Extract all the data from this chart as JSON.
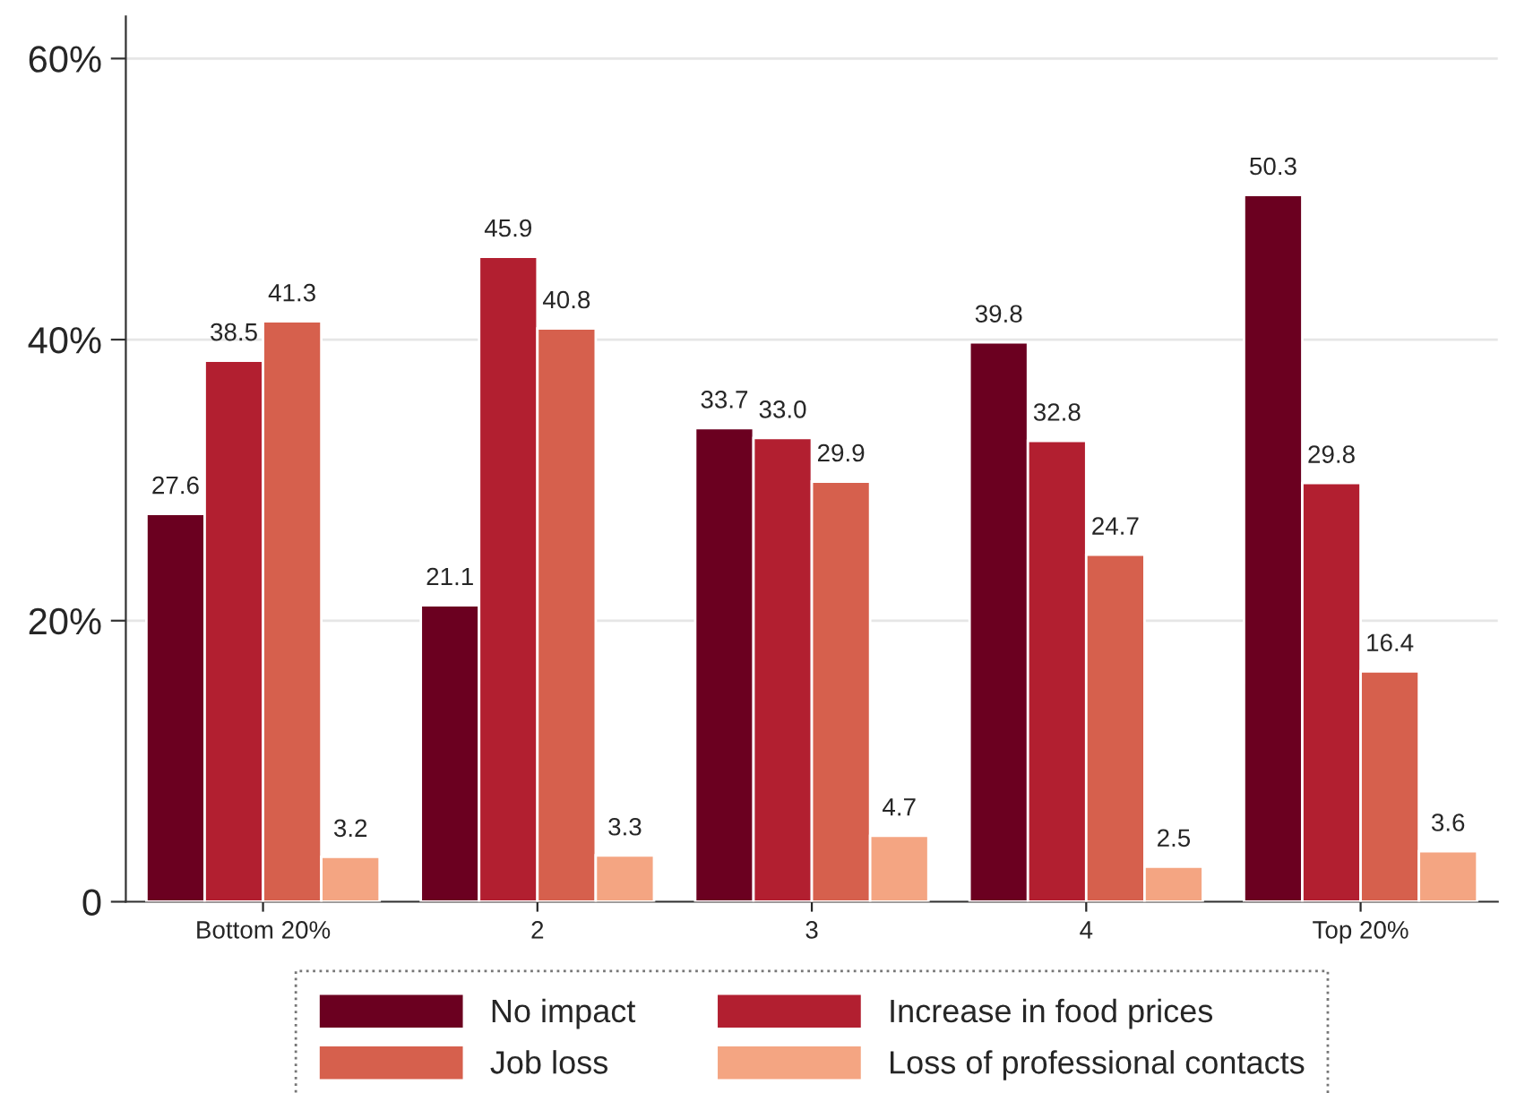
{
  "chart_data": {
    "type": "bar",
    "categories": [
      "Bottom 20%",
      "2",
      "3",
      "4",
      "Top 20%"
    ],
    "series": [
      {
        "name": "No impact",
        "color": "#6b0020",
        "values": [
          27.6,
          21.1,
          33.7,
          39.8,
          50.3
        ],
        "value_labels": [
          "27.6",
          "21.1",
          "33.7",
          "39.8",
          "50.3"
        ]
      },
      {
        "name": "Increase in food prices",
        "color": "#b21f30",
        "values": [
          38.5,
          45.9,
          33.0,
          32.8,
          29.8
        ],
        "value_labels": [
          "38.5",
          "45.9",
          "33.0",
          "32.8",
          "29.8"
        ]
      },
      {
        "name": "Job loss",
        "color": "#d6604d",
        "values": [
          41.3,
          40.8,
          29.9,
          24.7,
          16.4
        ],
        "value_labels": [
          "41.3",
          "40.8",
          "29.9",
          "24.7",
          "16.4"
        ]
      },
      {
        "name": "Loss of professional contacts",
        "color": "#f4a582",
        "values": [
          3.2,
          3.3,
          4.7,
          2.5,
          3.6
        ],
        "value_labels": [
          "3.2",
          "3.3",
          "4.7",
          "2.5",
          "3.6"
        ]
      }
    ],
    "ylim": [
      0,
      63
    ],
    "yticks": [
      {
        "value": 0,
        "label": "0"
      },
      {
        "value": 20,
        "label": "20%"
      },
      {
        "value": 40,
        "label": "40%"
      },
      {
        "value": 60,
        "label": "60%"
      }
    ],
    "grid": "y",
    "legend": "bottom"
  }
}
